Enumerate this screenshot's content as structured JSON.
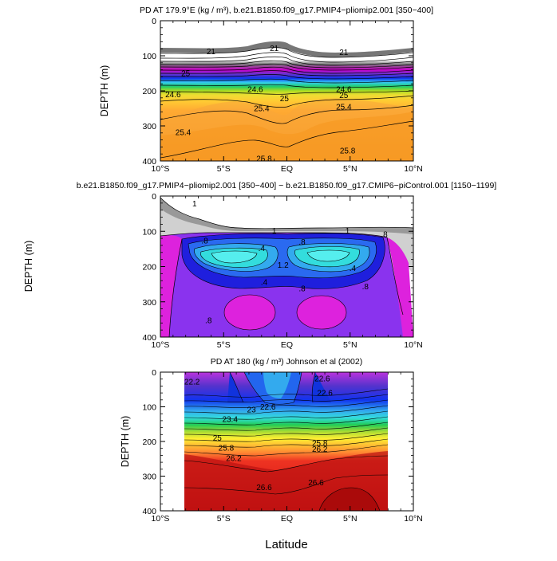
{
  "chart_data": [
    {
      "type": "heatmap",
      "title": "PD AT 179.9°E (kg / m³), b.e21.B1850.f09_g17.PMIP4−pliomip2.001 [350−400]",
      "xlabel": "",
      "ylabel": "DEPTH (m)",
      "xlim": [
        -10,
        10
      ],
      "ylim": [
        400,
        0
      ],
      "x_ticks": [
        "10°S",
        "5°S",
        "EQ",
        "5°N",
        "10°N"
      ],
      "y_ticks": [
        "0",
        "100",
        "200",
        "300",
        "400"
      ],
      "contour_levels": [
        21,
        21.4,
        21.8,
        22.2,
        22.6,
        23,
        23.4,
        23.8,
        24.2,
        24.6,
        25,
        25.4,
        25.8
      ],
      "contour_labels": [
        {
          "text": "21",
          "lat": -6.0,
          "depth": 88
        },
        {
          "text": "21",
          "lat": -1.0,
          "depth": 78
        },
        {
          "text": "21",
          "lat": 4.5,
          "depth": 90
        },
        {
          "text": "25",
          "lat": -8.0,
          "depth": 150
        },
        {
          "text": "24.6",
          "lat": -9.0,
          "depth": 210
        },
        {
          "text": "24.6",
          "lat": -2.5,
          "depth": 195
        },
        {
          "text": "24.6",
          "lat": 4.5,
          "depth": 195
        },
        {
          "text": "25",
          "lat": -0.2,
          "depth": 222
        },
        {
          "text": "25",
          "lat": 4.5,
          "depth": 212
        },
        {
          "text": "25.4",
          "lat": -2.0,
          "depth": 250
        },
        {
          "text": "25.4",
          "lat": 4.5,
          "depth": 245
        },
        {
          "text": "25.4",
          "lat": -8.2,
          "depth": 318
        },
        {
          "text": "25.8",
          "lat": -1.8,
          "depth": 393
        },
        {
          "text": "25.8",
          "lat": 4.8,
          "depth": 370
        }
      ]
    },
    {
      "type": "heatmap",
      "title": "b.e21.B1850.f09_g17.PMIP4−pliomip2.001 [350−400] − b.e21.B1850.f09_g17.CMIP6−piControl.001 [1150−1199]",
      "xlabel": "",
      "ylabel": "DEPTH (m)",
      "xlim": [
        -10,
        10
      ],
      "ylim": [
        400,
        0
      ],
      "x_ticks": [
        "10°S",
        "5°S",
        "EQ",
        "5°N",
        "10°N"
      ],
      "y_ticks": [
        "0",
        "100",
        "200",
        "300",
        "400"
      ],
      "contour_levels": [
        -1.6,
        -1.2,
        -0.8,
        -0.4,
        0,
        0.4,
        0.8,
        1
      ],
      "contour_labels": [
        {
          "text": "1",
          "lat": -7.3,
          "depth": 22
        },
        {
          "text": "1",
          "lat": -1.0,
          "depth": 98
        },
        {
          "text": "1",
          "lat": 4.8,
          "depth": 98
        },
        {
          "text": ".8",
          "lat": -6.5,
          "depth": 126
        },
        {
          "text": ".8",
          "lat": 1.2,
          "depth": 130
        },
        {
          "text": ".8",
          "lat": 7.7,
          "depth": 108
        },
        {
          "text": ".8",
          "lat": 1.2,
          "depth": 262
        },
        {
          "text": ".8",
          "lat": -6.2,
          "depth": 352
        },
        {
          "text": ".8",
          "lat": 6.2,
          "depth": 256
        },
        {
          "text": ".4",
          "lat": -2.0,
          "depth": 148
        },
        {
          "text": ".4",
          "lat": 5.2,
          "depth": 205
        },
        {
          "text": ".4",
          "lat": -1.8,
          "depth": 244
        },
        {
          "text": "1.2",
          "lat": -0.3,
          "depth": 195
        }
      ]
    },
    {
      "type": "heatmap",
      "title": "PD AT 180 (kg / m³) Johnson et al (2002)",
      "xlabel": "Latitude",
      "ylabel": "DEPTH (m)",
      "xlim": [
        -10,
        10
      ],
      "ylim": [
        400,
        0
      ],
      "data_lat_range": [
        -8,
        8
      ],
      "x_ticks": [
        "10°S",
        "5°S",
        "EQ",
        "5°N",
        "10°N"
      ],
      "y_ticks": [
        "0",
        "100",
        "200",
        "300",
        "400"
      ],
      "contour_levels": [
        21.8,
        22.2,
        22.6,
        23,
        23.4,
        23.8,
        24.2,
        24.6,
        25,
        25.4,
        25.8,
        26.2,
        26.6
      ],
      "contour_labels": [
        {
          "text": "22.2",
          "lat": -7.5,
          "depth": 28
        },
        {
          "text": "22.6",
          "lat": 2.8,
          "depth": 18
        },
        {
          "text": "22.6",
          "lat": 3.0,
          "depth": 60
        },
        {
          "text": "22.6",
          "lat": -1.5,
          "depth": 100
        },
        {
          "text": "23",
          "lat": -2.8,
          "depth": 108
        },
        {
          "text": "23.4",
          "lat": -4.5,
          "depth": 136
        },
        {
          "text": "25",
          "lat": -5.5,
          "depth": 190
        },
        {
          "text": "25.8",
          "lat": -4.8,
          "depth": 218
        },
        {
          "text": "26.2",
          "lat": -4.2,
          "depth": 248
        },
        {
          "text": "26.2",
          "lat": 2.6,
          "depth": 222
        },
        {
          "text": "25.8",
          "lat": 2.6,
          "depth": 205
        },
        {
          "text": "26.6",
          "lat": -1.8,
          "depth": 332
        },
        {
          "text": "26.6",
          "lat": 2.3,
          "depth": 318
        }
      ]
    }
  ],
  "figure": {
    "bottom_xlabel": "Latitude",
    "panel1_ylabel": "DEPTH (m)",
    "panel2_ylabel": "DEPTH (m)",
    "panel3_ylabel": "DEPTH (m)"
  }
}
